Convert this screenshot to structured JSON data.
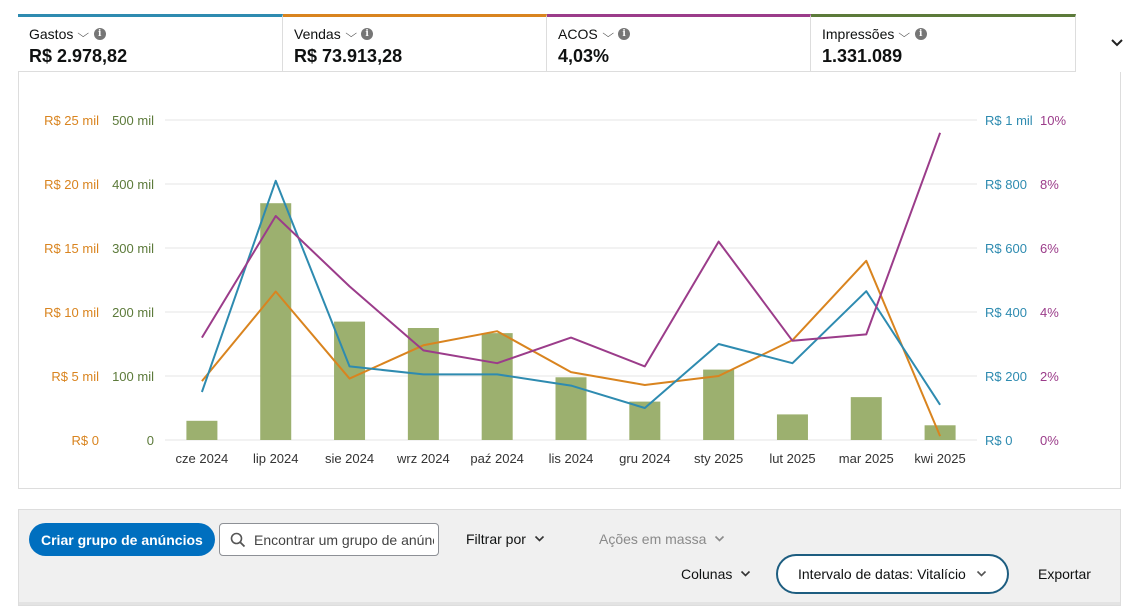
{
  "metrics": [
    {
      "label": "Gastos",
      "value": "R$ 2.978,82",
      "color": "#2e8bb0"
    },
    {
      "label": "Vendas",
      "value": "R$ 73.913,28",
      "color": "#d9841f"
    },
    {
      "label": "ACOS",
      "value": "4,03%",
      "color": "#9b3c8a"
    },
    {
      "label": "Impressões",
      "value": "1.331.089",
      "color": "#5c7a3a"
    }
  ],
  "chart_data": {
    "type": "bar",
    "categories": [
      "cze 2024",
      "lip 2024",
      "sie 2024",
      "wrz 2024",
      "paź 2024",
      "lis 2024",
      "gru 2024",
      "sty 2025",
      "lut 2025",
      "mar 2025",
      "kwi 2025"
    ],
    "series": [
      {
        "name": "Impressões",
        "type": "bar",
        "axis": "left-outer",
        "color": "#9cb06f",
        "values": [
          30000,
          370000,
          185000,
          175000,
          167000,
          98000,
          60000,
          110000,
          40000,
          67000,
          23000
        ]
      },
      {
        "name": "Vendas",
        "type": "line",
        "axis": "left-inner",
        "color": "#d9841f",
        "values": [
          4600,
          11600,
          4800,
          7400,
          8500,
          5300,
          4300,
          5000,
          7800,
          14000,
          300
        ]
      },
      {
        "name": "Gastos",
        "type": "line",
        "axis": "right-inner",
        "color": "#2e8bb0",
        "values": [
          150,
          810,
          230,
          205,
          205,
          170,
          100,
          300,
          240,
          465,
          110
        ]
      },
      {
        "name": "ACOS",
        "type": "line",
        "axis": "right-outer",
        "color": "#9b3c8a",
        "values": [
          3.2,
          7.0,
          4.8,
          2.8,
          2.4,
          3.2,
          2.3,
          6.2,
          3.1,
          3.3,
          9.6
        ]
      }
    ],
    "axes": {
      "left_outer": {
        "ticks": [
          "R$ 0",
          "R$ 5 mil",
          "R$ 10 mil",
          "R$ 15 mil",
          "R$ 20 mil",
          "R$ 25 mil"
        ],
        "max": 25000
      },
      "left_inner": {
        "ticks": [
          "0",
          "100 mil",
          "200 mil",
          "300 mil",
          "400 mil",
          "500 mil"
        ],
        "max": 500000
      },
      "right_inner": {
        "ticks": [
          "R$ 0",
          "R$ 200",
          "R$ 400",
          "R$ 600",
          "R$ 800",
          "R$ 1 mil"
        ],
        "max": 1000
      },
      "right_outer": {
        "ticks": [
          "0%",
          "2%",
          "4%",
          "6%",
          "8%",
          "10%"
        ],
        "max": 10
      }
    },
    "grid": true
  },
  "toolbar": {
    "create_label": "Criar grupo de anúncios",
    "search_placeholder": "Encontrar um grupo de anúncios",
    "filter_label": "Filtrar por",
    "bulk_label": "Ações em massa",
    "columns_label": "Colunas",
    "date_range_label": "Intervalo de datas: Vitalício",
    "export_label": "Exportar"
  }
}
